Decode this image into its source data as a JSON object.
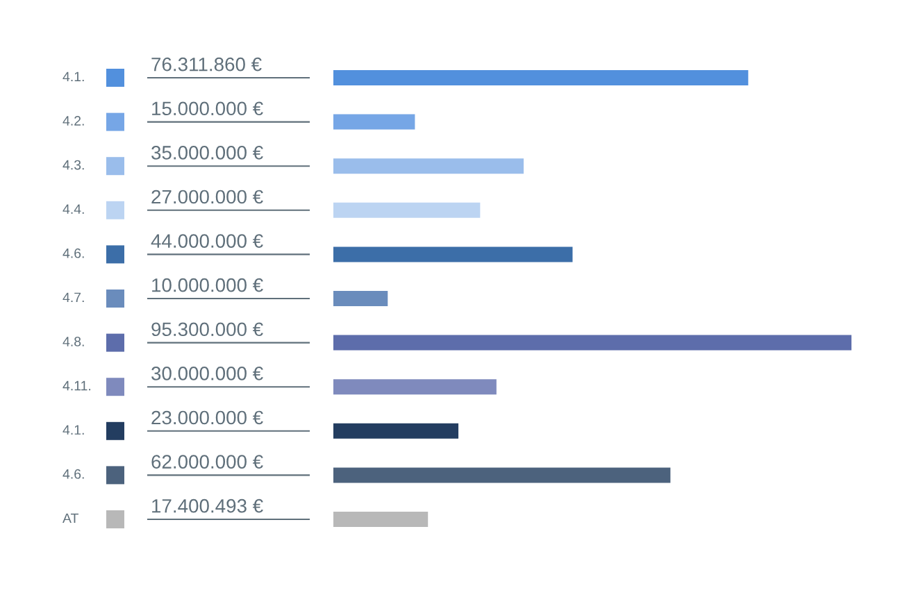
{
  "chart_data": {
    "type": "bar",
    "orientation": "horizontal",
    "categories": [
      "4.1.",
      "4.2.",
      "4.3.",
      "4.4.",
      "4.6.",
      "4.7.",
      "4.8.",
      "4.11.",
      "4.1.",
      "4.6.",
      "AT"
    ],
    "values": [
      76311860,
      15000000,
      35000000,
      27000000,
      44000000,
      10000000,
      95300000,
      30000000,
      23000000,
      62000000,
      17400493
    ],
    "value_labels": [
      "76.311.860 €",
      "15.000.000 €",
      "35.000.000 €",
      "27.000.000 €",
      "44.000.000 €",
      "10.000.000 €",
      "95.300.000 €",
      "30.000.000 €",
      "23.000.000 €",
      "62.000.000 €",
      "17.400.493 €"
    ],
    "colors": [
      "#5290dd",
      "#76a6e6",
      "#9abdeb",
      "#bcd4f2",
      "#3c6ea8",
      "#6a8cbc",
      "#5d6dab",
      "#7f8abd",
      "#233d60",
      "#4c627d",
      "#b8b8b8"
    ]
  }
}
